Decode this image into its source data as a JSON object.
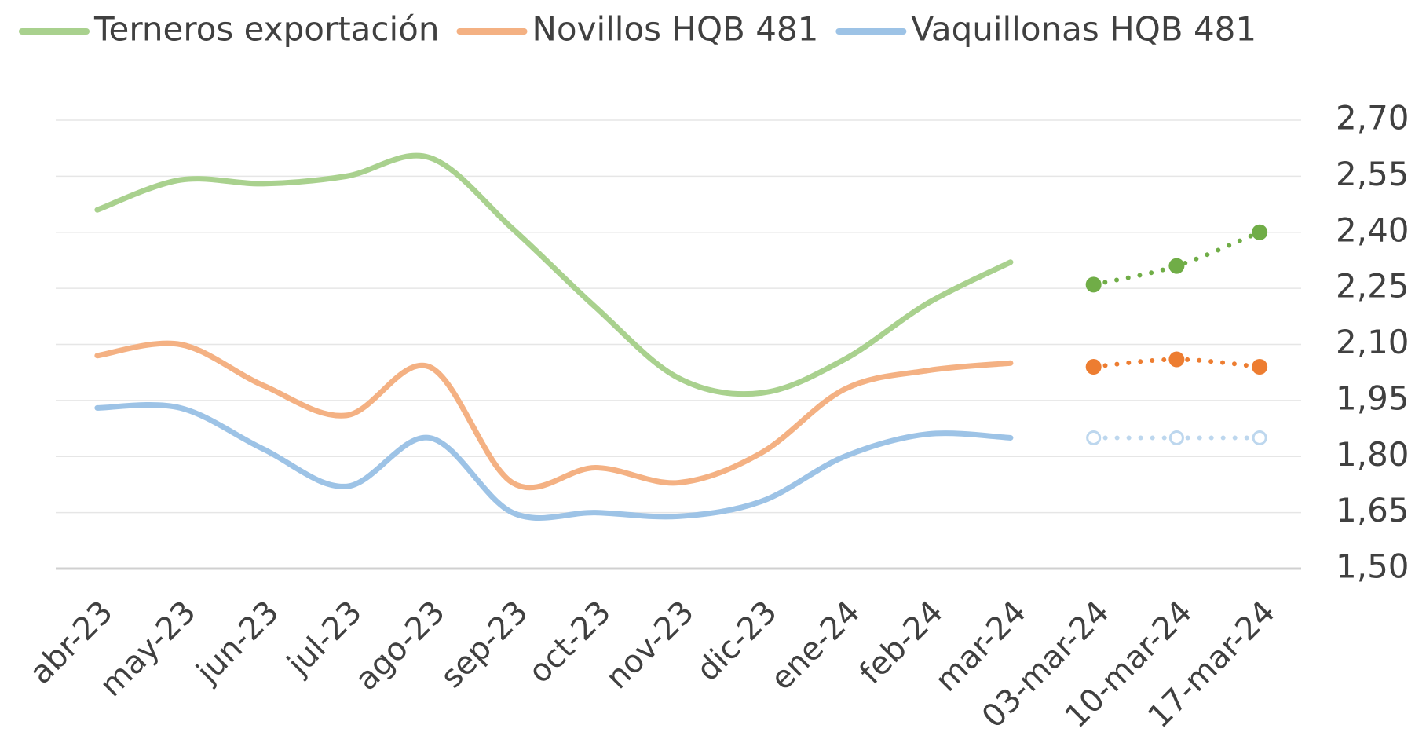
{
  "chart_data": {
    "type": "line",
    "categories": [
      "abr-23",
      "may-23",
      "jun-23",
      "jul-23",
      "ago-23",
      "sep-23",
      "oct-23",
      "nov-23",
      "dic-23",
      "ene-24",
      "feb-24",
      "mar-24",
      "03-mar-24",
      "10-mar-24",
      "17-mar-24"
    ],
    "series": [
      {
        "name": "Terneros exportación",
        "color": "#a9d18e",
        "weekly_color": "#70ad47",
        "weekly_marker": "filled",
        "values": [
          2.46,
          2.54,
          2.53,
          2.55,
          2.6,
          2.41,
          2.2,
          2.01,
          1.97,
          2.06,
          2.21,
          2.32,
          null,
          null,
          null
        ],
        "weekly_values": [
          null,
          null,
          null,
          null,
          null,
          null,
          null,
          null,
          null,
          null,
          null,
          null,
          2.26,
          2.31,
          2.4
        ]
      },
      {
        "name": "Novillos HQB 481",
        "color": "#f4b183",
        "weekly_color": "#ed7d31",
        "weekly_marker": "filled",
        "values": [
          2.07,
          2.1,
          1.99,
          1.91,
          2.04,
          1.73,
          1.77,
          1.73,
          1.81,
          1.98,
          2.03,
          2.05,
          null,
          null,
          null
        ],
        "weekly_values": [
          null,
          null,
          null,
          null,
          null,
          null,
          null,
          null,
          null,
          null,
          null,
          null,
          2.04,
          2.06,
          2.04
        ]
      },
      {
        "name": "Vaquillonas HQB 481",
        "color": "#9dc3e6",
        "weekly_color": "#bdd7ee",
        "weekly_marker": "hollow",
        "values": [
          1.93,
          1.93,
          1.82,
          1.72,
          1.85,
          1.65,
          1.65,
          1.64,
          1.68,
          1.8,
          1.86,
          1.85,
          null,
          null,
          null
        ],
        "weekly_values": [
          null,
          null,
          null,
          null,
          null,
          null,
          null,
          null,
          null,
          null,
          null,
          null,
          1.85,
          1.85,
          1.85
        ]
      }
    ],
    "ylim": [
      1.5,
      2.7
    ],
    "yticks": [
      {
        "value": 1.5,
        "label": "1,50"
      },
      {
        "value": 1.65,
        "label": "1,65"
      },
      {
        "value": 1.8,
        "label": "1,80"
      },
      {
        "value": 1.95,
        "label": "1,95"
      },
      {
        "value": 2.1,
        "label": "2,10"
      },
      {
        "value": 2.25,
        "label": "2,25"
      },
      {
        "value": 2.4,
        "label": "2,40"
      },
      {
        "value": 2.55,
        "label": "2,55"
      },
      {
        "value": 2.7,
        "label": "2,70"
      }
    ],
    "yaxis_side": "right",
    "grid": true,
    "legend": "top"
  }
}
